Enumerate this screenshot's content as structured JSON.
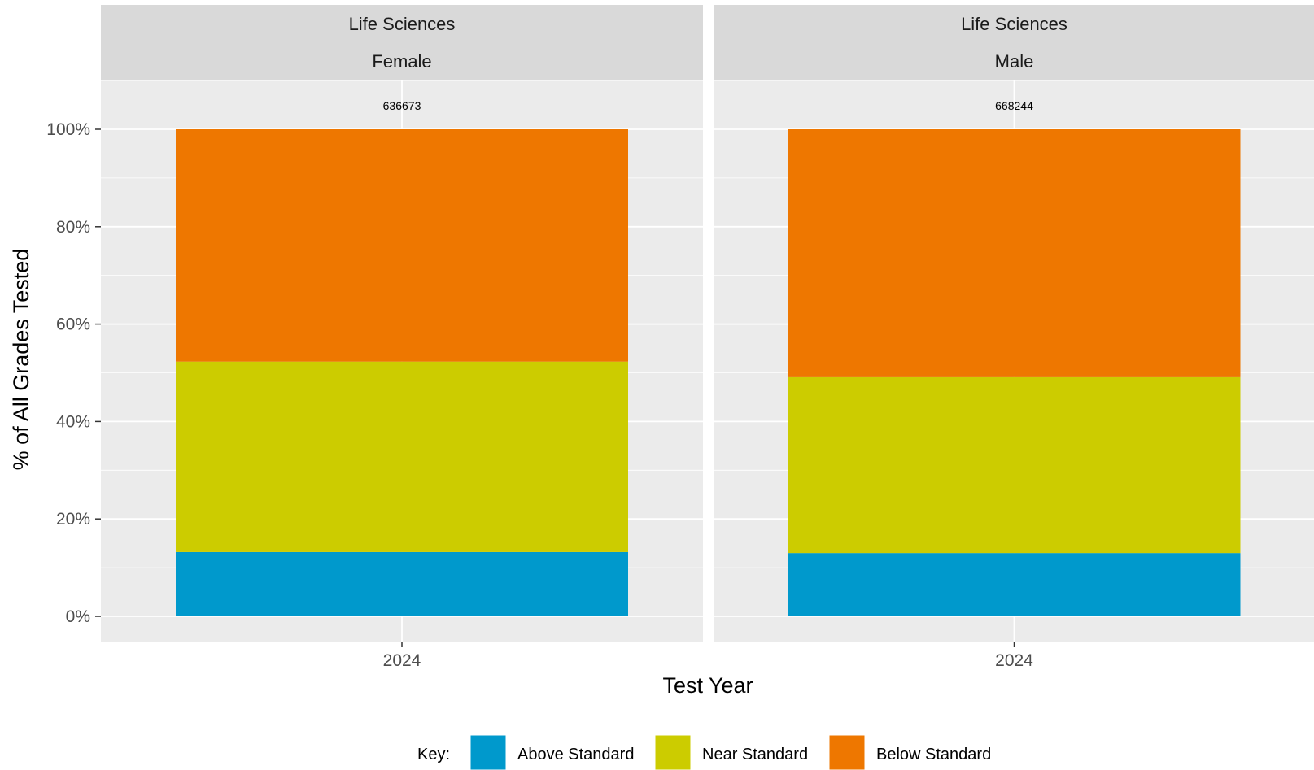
{
  "chart_data": {
    "type": "bar",
    "stacked": true,
    "xlabel": "Test Year",
    "ylabel": "% of All Grades Tested",
    "ylim": [
      0,
      100
    ],
    "yticks": [
      "0%",
      "20%",
      "40%",
      "60%",
      "80%",
      "100%"
    ],
    "grid": true,
    "legend": {
      "position": "bottom",
      "title": "Key:",
      "entries": [
        "Above Standard",
        "Near Standard",
        "Below Standard"
      ]
    },
    "colors": {
      "Above Standard": "#0099CC",
      "Near Standard": "#CCCC00",
      "Below Standard": "#EE7700"
    },
    "panels": [
      {
        "subject": "Life Sciences",
        "group": "Female",
        "category": "2024",
        "n_label": "636673",
        "series": [
          {
            "name": "Above Standard",
            "value": 13.2
          },
          {
            "name": "Near Standard",
            "value": 39.1
          },
          {
            "name": "Below Standard",
            "value": 47.7
          }
        ]
      },
      {
        "subject": "Life Sciences",
        "group": "Male",
        "category": "2024",
        "n_label": "668244",
        "series": [
          {
            "name": "Above Standard",
            "value": 13.0
          },
          {
            "name": "Near Standard",
            "value": 36.1
          },
          {
            "name": "Below Standard",
            "value": 50.9
          }
        ]
      }
    ]
  }
}
